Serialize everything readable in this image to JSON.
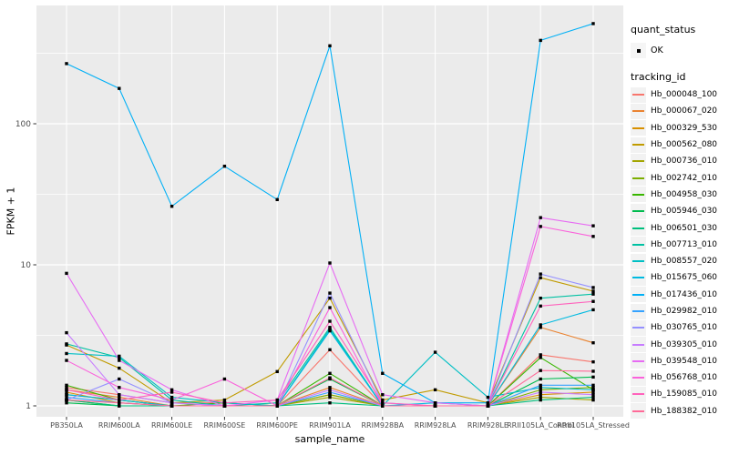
{
  "figure": {
    "x_axis_title": "sample_name",
    "y_axis_title": "FPKM + 1",
    "colors": {
      "background": "#FFFFFF",
      "panel_bg": "#EBEBEB",
      "grid": "#FFFFFF",
      "tick_mark": "#333333",
      "tick_text": "#4D4D4D",
      "axis_title_text": "#000000",
      "point": "#000000",
      "legend_key_bg": "#F2F2F2"
    }
  },
  "legend": {
    "quant_status": {
      "title": "quant_status",
      "items": [
        {
          "label": "OK"
        }
      ]
    },
    "tracking_id": {
      "title": "tracking_id"
    }
  },
  "chart_data": {
    "type": "line",
    "title": "",
    "xlabel": "sample_name",
    "ylabel": "FPKM + 1",
    "y_scale": "log10",
    "ylim": [
      0.84,
      690
    ],
    "y_major_ticks": [
      1,
      10,
      100
    ],
    "y_minor_ticks": [
      3.162,
      31.62,
      316.2
    ],
    "grid": true,
    "legend_position": "right",
    "point_shape": "black-square",
    "categories": [
      "PB350LA",
      "RRIM600LA",
      "RRIM600LE",
      "RRIM600SE",
      "RRIM600PE",
      "RRIM901LA",
      "RRIM928BA",
      "RRIM928LA",
      "RRIM928LE",
      "RRII105LA_Control",
      "RRII105LA_Stressed"
    ],
    "series": [
      {
        "name": "Hb_000048_100",
        "quant_status": "OK",
        "color": "#F8766D",
        "values": [
          1.35,
          1.2,
          1.05,
          1.05,
          1.0,
          2.5,
          1.0,
          1.0,
          1.0,
          2.3,
          2.05
        ]
      },
      {
        "name": "Hb_000067_020",
        "quant_status": "OK",
        "color": "#EA8331",
        "values": [
          1.3,
          1.15,
          1.0,
          1.0,
          1.0,
          1.35,
          1.0,
          1.0,
          1.0,
          3.6,
          2.8
        ]
      },
      {
        "name": "Hb_000329_530",
        "quant_status": "OK",
        "color": "#D89000",
        "values": [
          1.25,
          1.05,
          1.0,
          1.0,
          1.0,
          1.2,
          1.0,
          1.0,
          1.0,
          1.2,
          1.25
        ]
      },
      {
        "name": "Hb_000562_080",
        "quant_status": "OK",
        "color": "#C09B00",
        "values": [
          2.7,
          1.85,
          1.05,
          1.1,
          1.75,
          5.8,
          1.1,
          1.3,
          1.05,
          8.1,
          6.5
        ]
      },
      {
        "name": "Hb_000736_010",
        "quant_status": "OK",
        "color": "#A3A500",
        "values": [
          1.2,
          1.1,
          1.0,
          1.0,
          1.0,
          1.15,
          1.0,
          1.0,
          1.0,
          1.15,
          1.1
        ]
      },
      {
        "name": "Hb_002742_010",
        "quant_status": "OK",
        "color": "#7CAE00",
        "values": [
          1.1,
          1.0,
          1.0,
          1.0,
          1.0,
          1.2,
          1.0,
          1.0,
          1.0,
          1.3,
          1.35
        ]
      },
      {
        "name": "Hb_004958_030",
        "quant_status": "OK",
        "color": "#39B600",
        "values": [
          1.4,
          1.1,
          1.0,
          1.05,
          1.0,
          1.7,
          1.0,
          1.0,
          1.0,
          2.2,
          1.3
        ]
      },
      {
        "name": "Hb_005946_030",
        "quant_status": "OK",
        "color": "#00BB4E",
        "values": [
          1.05,
          1.0,
          1.0,
          1.0,
          1.0,
          1.55,
          1.0,
          1.0,
          1.0,
          1.55,
          1.6
        ]
      },
      {
        "name": "Hb_006501_030",
        "quant_status": "OK",
        "color": "#00BF7D",
        "values": [
          1.1,
          1.0,
          1.0,
          1.0,
          1.0,
          1.05,
          1.0,
          1.0,
          1.0,
          1.1,
          1.15
        ]
      },
      {
        "name": "Hb_007713_010",
        "quant_status": "OK",
        "color": "#00C1A3",
        "values": [
          2.75,
          2.2,
          1.1,
          1.0,
          1.05,
          3.6,
          1.0,
          1.0,
          1.0,
          5.8,
          6.2
        ]
      },
      {
        "name": "Hb_008557_020",
        "quant_status": "OK",
        "color": "#00BFC4",
        "values": [
          2.35,
          2.25,
          1.15,
          1.05,
          1.0,
          3.5,
          1.0,
          2.4,
          1.15,
          1.35,
          1.3
        ]
      },
      {
        "name": "Hb_015675_060",
        "quant_status": "OK",
        "color": "#00BAE0",
        "values": [
          1.2,
          1.1,
          1.0,
          1.0,
          1.0,
          3.4,
          1.0,
          1.05,
          1.0,
          3.75,
          4.8
        ]
      },
      {
        "name": "Hb_017436_010",
        "quant_status": "OK",
        "color": "#00B0F6",
        "values": [
          267,
          178,
          26,
          50,
          29,
          357,
          1.7,
          1.05,
          1.05,
          390,
          513
        ]
      },
      {
        "name": "Hb_029982_010",
        "quant_status": "OK",
        "color": "#35A2FF",
        "values": [
          1.15,
          1.05,
          1.0,
          1.0,
          1.0,
          1.25,
          1.0,
          1.0,
          1.0,
          1.4,
          1.4
        ]
      },
      {
        "name": "Hb_030765_010",
        "quant_status": "OK",
        "color": "#9590FF",
        "values": [
          1.1,
          1.55,
          1.05,
          1.0,
          1.0,
          6.3,
          1.05,
          1.0,
          1.0,
          8.6,
          6.9
        ]
      },
      {
        "name": "Hb_039305_010",
        "quant_status": "OK",
        "color": "#C77CFF",
        "values": [
          3.3,
          1.2,
          1.05,
          1.0,
          1.0,
          1.3,
          1.0,
          1.0,
          1.0,
          1.25,
          1.2
        ]
      },
      {
        "name": "Hb_039548_010",
        "quant_status": "OK",
        "color": "#E76BF3",
        "values": [
          8.7,
          2.1,
          1.3,
          1.0,
          1.1,
          10.3,
          1.2,
          1.05,
          1.0,
          21.6,
          18.9
        ]
      },
      {
        "name": "Hb_056768_010",
        "quant_status": "OK",
        "color": "#FA62DB",
        "values": [
          2.1,
          1.35,
          1.1,
          1.55,
          1.0,
          4.97,
          1.0,
          1.0,
          1.0,
          18.7,
          15.9
        ]
      },
      {
        "name": "Hb_159085_010",
        "quant_status": "OK",
        "color": "#FF62BC",
        "values": [
          1.3,
          1.1,
          1.25,
          1.05,
          1.1,
          3.98,
          1.05,
          1.0,
          1.0,
          5.1,
          5.5
        ]
      },
      {
        "name": "Hb_188382_010",
        "quant_status": "OK",
        "color": "#FF6A98",
        "values": [
          1.1,
          1.05,
          1.0,
          1.0,
          1.0,
          1.58,
          1.0,
          1.0,
          1.0,
          1.78,
          1.76
        ]
      }
    ]
  }
}
